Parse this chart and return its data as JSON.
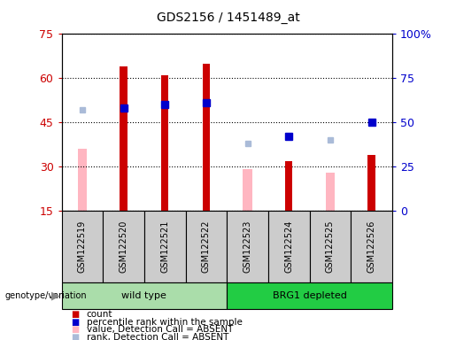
{
  "title": "GDS2156 / 1451489_at",
  "samples": [
    "GSM122519",
    "GSM122520",
    "GSM122521",
    "GSM122522",
    "GSM122523",
    "GSM122524",
    "GSM122525",
    "GSM122526"
  ],
  "ylim_left": [
    15,
    75
  ],
  "ylim_right": [
    0,
    100
  ],
  "yticks_left": [
    15,
    30,
    45,
    60,
    75
  ],
  "yticks_right": [
    0,
    25,
    50,
    75,
    100
  ],
  "count_values": [
    null,
    64,
    61,
    65,
    null,
    32,
    null,
    34
  ],
  "rank_values_pct": [
    null,
    58,
    60,
    61,
    null,
    42,
    null,
    50
  ],
  "absent_value_values": [
    36,
    null,
    null,
    null,
    29,
    null,
    28,
    null
  ],
  "absent_rank_pct": [
    57,
    null,
    null,
    null,
    38,
    null,
    40,
    50
  ],
  "count_color": "#CC0000",
  "rank_color": "#0000CC",
  "absent_value_color": "#FFB6C1",
  "absent_rank_color": "#AABBD8",
  "count_bar_width": 0.18,
  "absent_bar_width": 0.22,
  "legend_items": [
    "count",
    "percentile rank within the sample",
    "value, Detection Call = ABSENT",
    "rank, Detection Call = ABSENT"
  ],
  "legend_colors": [
    "#CC0000",
    "#0000CC",
    "#FFB6C1",
    "#AABBD8"
  ],
  "bg_color": "#CCCCCC",
  "plot_bg": "#FFFFFF",
  "wt_color": "#AADDAA",
  "brg_color": "#22CC44"
}
